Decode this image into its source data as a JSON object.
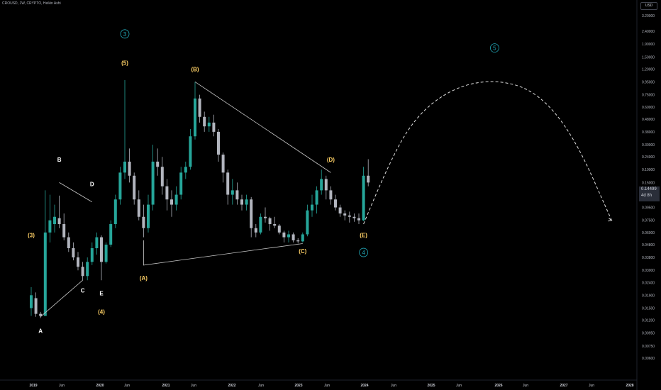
{
  "symbol_line": "CROUSD, 1W, CRYPTO, Heikin Ashi",
  "currency": "USD",
  "last_price": "0.14499",
  "countdown": "4d 8h",
  "colors": {
    "up": "#26a69a",
    "down": "#b2b5be",
    "wave": "#ffd166",
    "cycle": "#21a6b6",
    "line": "#c8c8c8"
  },
  "chart_data": {
    "type": "candlestick",
    "yscale": "log",
    "price_ticks": [
      "3.20000",
      "2.40000",
      "1.90000",
      "1.50000",
      "1.20000",
      "0.95000",
      "0.75000",
      "0.60000",
      "0.48000",
      "0.38000",
      "0.30000",
      "0.24000",
      "0.19000",
      "0.15000",
      "0.12000",
      "0.09500",
      "0.07500",
      "0.06000",
      "0.04800",
      "0.03800",
      "0.03000",
      "0.02400",
      "0.01900",
      "0.01500",
      "0.01200",
      "0.00950",
      "0.00750",
      "0.00600"
    ],
    "time_ticks": [
      "2019",
      "Jun",
      "2020",
      "Jun",
      "2021",
      "Jun",
      "2022",
      "Jun",
      "2023",
      "Jun",
      "2024",
      "Jun",
      "2025",
      "Jun",
      "2026",
      "Jun",
      "2027",
      "Jun",
      "2028"
    ],
    "series": [
      {
        "x": "2019-01",
        "o": 0.015,
        "h": 0.022,
        "l": 0.013,
        "c": 0.019
      },
      {
        "x": "2019-02",
        "o": 0.018,
        "h": 0.02,
        "l": 0.0128,
        "c": 0.0135
      },
      {
        "x": "2019-03",
        "o": 0.0135,
        "h": 0.014,
        "l": 0.0125,
        "c": 0.013
      },
      {
        "x": "2019-03b",
        "o": 0.013,
        "h": 0.13,
        "l": 0.013,
        "c": 0.06
      },
      {
        "x": "2019-04",
        "o": 0.06,
        "h": 0.12,
        "l": 0.05,
        "c": 0.075
      },
      {
        "x": "2019-05",
        "o": 0.07,
        "h": 0.1,
        "l": 0.06,
        "c": 0.08
      },
      {
        "x": "2019-06",
        "o": 0.078,
        "h": 0.118,
        "l": 0.065,
        "c": 0.07
      },
      {
        "x": "2019-07",
        "o": 0.07,
        "h": 0.085,
        "l": 0.052,
        "c": 0.055
      },
      {
        "x": "2019-08",
        "o": 0.055,
        "h": 0.06,
        "l": 0.042,
        "c": 0.045
      },
      {
        "x": "2019-09",
        "o": 0.045,
        "h": 0.05,
        "l": 0.036,
        "c": 0.038
      },
      {
        "x": "2019-10",
        "o": 0.038,
        "h": 0.042,
        "l": 0.03,
        "c": 0.032
      },
      {
        "x": "2019-11",
        "o": 0.032,
        "h": 0.035,
        "l": 0.025,
        "c": 0.027
      },
      {
        "x": "2019-12",
        "o": 0.027,
        "h": 0.038,
        "l": 0.025,
        "c": 0.035
      },
      {
        "x": "2020-01",
        "o": 0.035,
        "h": 0.05,
        "l": 0.033,
        "c": 0.045
      },
      {
        "x": "2020-02",
        "o": 0.045,
        "h": 0.06,
        "l": 0.04,
        "c": 0.055
      },
      {
        "x": "2020-03",
        "o": 0.055,
        "h": 0.057,
        "l": 0.025,
        "c": 0.035
      },
      {
        "x": "2020-04",
        "o": 0.035,
        "h": 0.05,
        "l": 0.034,
        "c": 0.048
      },
      {
        "x": "2020-05",
        "o": 0.048,
        "h": 0.075,
        "l": 0.046,
        "c": 0.07
      },
      {
        "x": "2020-06",
        "o": 0.07,
        "h": 0.12,
        "l": 0.065,
        "c": 0.11
      },
      {
        "x": "2020-07",
        "o": 0.11,
        "h": 0.2,
        "l": 0.1,
        "c": 0.18
      },
      {
        "x": "2020-08",
        "o": 0.18,
        "h": 0.98,
        "l": 0.16,
        "c": 0.22
      },
      {
        "x": "2020-09",
        "o": 0.22,
        "h": 0.28,
        "l": 0.15,
        "c": 0.17
      },
      {
        "x": "2020-10",
        "o": 0.17,
        "h": 0.18,
        "l": 0.1,
        "c": 0.11
      },
      {
        "x": "2020-11",
        "o": 0.11,
        "h": 0.13,
        "l": 0.075,
        "c": 0.08
      },
      {
        "x": "2020-12",
        "o": 0.08,
        "h": 0.1,
        "l": 0.055,
        "c": 0.065
      },
      {
        "x": "2021-01",
        "o": 0.065,
        "h": 0.12,
        "l": 0.06,
        "c": 0.1
      },
      {
        "x": "2021-02",
        "o": 0.1,
        "h": 0.3,
        "l": 0.09,
        "c": 0.22
      },
      {
        "x": "2021-03",
        "o": 0.22,
        "h": 0.28,
        "l": 0.17,
        "c": 0.2
      },
      {
        "x": "2021-04",
        "o": 0.2,
        "h": 0.24,
        "l": 0.12,
        "c": 0.14
      },
      {
        "x": "2021-05",
        "o": 0.14,
        "h": 0.16,
        "l": 0.09,
        "c": 0.11
      },
      {
        "x": "2021-06",
        "o": 0.11,
        "h": 0.13,
        "l": 0.08,
        "c": 0.1
      },
      {
        "x": "2021-07",
        "o": 0.1,
        "h": 0.14,
        "l": 0.09,
        "c": 0.12
      },
      {
        "x": "2021-08",
        "o": 0.12,
        "h": 0.2,
        "l": 0.11,
        "c": 0.18
      },
      {
        "x": "2021-09",
        "o": 0.18,
        "h": 0.22,
        "l": 0.16,
        "c": 0.2
      },
      {
        "x": "2021-10",
        "o": 0.2,
        "h": 0.4,
        "l": 0.19,
        "c": 0.35
      },
      {
        "x": "2021-11",
        "o": 0.35,
        "h": 0.95,
        "l": 0.33,
        "c": 0.7
      },
      {
        "x": "2021-12",
        "o": 0.7,
        "h": 0.75,
        "l": 0.45,
        "c": 0.5
      },
      {
        "x": "2022-01",
        "o": 0.5,
        "h": 0.55,
        "l": 0.38,
        "c": 0.42
      },
      {
        "x": "2022-02",
        "o": 0.42,
        "h": 0.5,
        "l": 0.38,
        "c": 0.45
      },
      {
        "x": "2022-03",
        "o": 0.45,
        "h": 0.52,
        "l": 0.35,
        "c": 0.38
      },
      {
        "x": "2022-04",
        "o": 0.38,
        "h": 0.4,
        "l": 0.22,
        "c": 0.25
      },
      {
        "x": "2022-05",
        "o": 0.25,
        "h": 0.26,
        "l": 0.15,
        "c": 0.18
      },
      {
        "x": "2022-06",
        "o": 0.18,
        "h": 0.19,
        "l": 0.1,
        "c": 0.12
      },
      {
        "x": "2022-07",
        "o": 0.12,
        "h": 0.16,
        "l": 0.1,
        "c": 0.13
      },
      {
        "x": "2022-08",
        "o": 0.13,
        "h": 0.15,
        "l": 0.1,
        "c": 0.11
      },
      {
        "x": "2022-09",
        "o": 0.11,
        "h": 0.12,
        "l": 0.09,
        "c": 0.1
      },
      {
        "x": "2022-10",
        "o": 0.1,
        "h": 0.12,
        "l": 0.09,
        "c": 0.11
      },
      {
        "x": "2022-11",
        "o": 0.11,
        "h": 0.115,
        "l": 0.055,
        "c": 0.065
      },
      {
        "x": "2022-12",
        "o": 0.065,
        "h": 0.07,
        "l": 0.055,
        "c": 0.06
      },
      {
        "x": "2023-01",
        "o": 0.06,
        "h": 0.085,
        "l": 0.058,
        "c": 0.08
      },
      {
        "x": "2023-02",
        "o": 0.08,
        "h": 0.095,
        "l": 0.072,
        "c": 0.078
      },
      {
        "x": "2023-03",
        "o": 0.078,
        "h": 0.08,
        "l": 0.062,
        "c": 0.07
      },
      {
        "x": "2023-04",
        "o": 0.07,
        "h": 0.08,
        "l": 0.065,
        "c": 0.068
      },
      {
        "x": "2023-05",
        "o": 0.068,
        "h": 0.07,
        "l": 0.058,
        "c": 0.06
      },
      {
        "x": "2023-06",
        "o": 0.06,
        "h": 0.062,
        "l": 0.05,
        "c": 0.055
      },
      {
        "x": "2023-07",
        "o": 0.055,
        "h": 0.062,
        "l": 0.05,
        "c": 0.058
      },
      {
        "x": "2023-08",
        "o": 0.058,
        "h": 0.06,
        "l": 0.05,
        "c": 0.052
      },
      {
        "x": "2023-09",
        "o": 0.052,
        "h": 0.054,
        "l": 0.049,
        "c": 0.051
      },
      {
        "x": "2023-10",
        "o": 0.051,
        "h": 0.06,
        "l": 0.05,
        "c": 0.058
      },
      {
        "x": "2023-11",
        "o": 0.058,
        "h": 0.1,
        "l": 0.056,
        "c": 0.09
      },
      {
        "x": "2023-12",
        "o": 0.09,
        "h": 0.12,
        "l": 0.08,
        "c": 0.1
      },
      {
        "x": "2024-01",
        "o": 0.1,
        "h": 0.14,
        "l": 0.085,
        "c": 0.13
      },
      {
        "x": "2024-02",
        "o": 0.13,
        "h": 0.19,
        "l": 0.12,
        "c": 0.16
      },
      {
        "x": "2024-03",
        "o": 0.16,
        "h": 0.17,
        "l": 0.11,
        "c": 0.13
      },
      {
        "x": "2024-04",
        "o": 0.13,
        "h": 0.14,
        "l": 0.1,
        "c": 0.11
      },
      {
        "x": "2024-05",
        "o": 0.11,
        "h": 0.12,
        "l": 0.09,
        "c": 0.095
      },
      {
        "x": "2024-06",
        "o": 0.095,
        "h": 0.1,
        "l": 0.08,
        "c": 0.085
      },
      {
        "x": "2024-07",
        "o": 0.085,
        "h": 0.09,
        "l": 0.075,
        "c": 0.082
      },
      {
        "x": "2024-08",
        "o": 0.082,
        "h": 0.088,
        "l": 0.072,
        "c": 0.08
      },
      {
        "x": "2024-09",
        "o": 0.08,
        "h": 0.085,
        "l": 0.073,
        "c": 0.078
      },
      {
        "x": "2024-10",
        "o": 0.078,
        "h": 0.085,
        "l": 0.07,
        "c": 0.075
      },
      {
        "x": "2024-11",
        "o": 0.075,
        "h": 0.2,
        "l": 0.074,
        "c": 0.17
      },
      {
        "x": "2024-12",
        "o": 0.17,
        "h": 0.23,
        "l": 0.14,
        "c": 0.15
      }
    ],
    "wave_labels": [
      {
        "text": "(3)",
        "i": 0,
        "price": 0.055,
        "color": "wave"
      },
      {
        "text": "A",
        "i": 2,
        "price": 0.0095,
        "color": "white"
      },
      {
        "text": "B",
        "i": 6,
        "price": 0.22,
        "color": "white"
      },
      {
        "text": "C",
        "i": 11,
        "price": 0.02,
        "color": "white"
      },
      {
        "text": "D",
        "i": 13,
        "price": 0.14,
        "color": "white"
      },
      {
        "text": "E",
        "i": 15,
        "price": 0.019,
        "color": "white"
      },
      {
        "text": "(4)",
        "i": 15,
        "price": 0.0135,
        "color": "wave"
      },
      {
        "text": "(5)",
        "i": 20,
        "price": 1.3,
        "color": "wave"
      },
      {
        "text": "(A)",
        "i": 24,
        "price": 0.025,
        "color": "wave"
      },
      {
        "text": "(B)",
        "i": 35,
        "price": 1.15,
        "color": "wave"
      },
      {
        "text": "(C)",
        "i": 58,
        "price": 0.041,
        "color": "wave"
      },
      {
        "text": "(D)",
        "i": 64,
        "price": 0.22,
        "color": "wave"
      },
      {
        "text": "(E)",
        "i": 71,
        "price": 0.055,
        "color": "wave"
      }
    ],
    "cycle_labels": [
      {
        "text": "3",
        "i": 20,
        "price": 2.2
      },
      {
        "text": "4",
        "i": 71,
        "price": 0.04
      },
      {
        "text": "5",
        "i": 99,
        "price": 1.7
      }
    ],
    "trendlines": [
      [
        {
          "i": 2,
          "price": 0.0128
        },
        {
          "i": 11,
          "price": 0.025
        },
        {
          "i": 11,
          "price": 0.025
        }
      ],
      [
        {
          "i": 6,
          "price": 0.15
        },
        {
          "i": 13,
          "price": 0.105
        }
      ],
      [
        {
          "i": 24,
          "price": 0.052
        },
        {
          "i": 24,
          "price": 0.033
        },
        {
          "i": 58,
          "price": 0.049
        }
      ],
      [
        {
          "i": 35,
          "price": 0.95
        },
        {
          "i": 64,
          "price": 0.18
        }
      ]
    ],
    "projection": [
      {
        "i": 71,
        "price": 0.07
      },
      {
        "i": 76,
        "price": 0.2
      },
      {
        "i": 82,
        "price": 0.5
      },
      {
        "i": 90,
        "price": 0.85
      },
      {
        "i": 99,
        "price": 1.0
      },
      {
        "i": 108,
        "price": 0.8
      },
      {
        "i": 116,
        "price": 0.35
      },
      {
        "i": 124,
        "price": 0.075
      }
    ]
  }
}
